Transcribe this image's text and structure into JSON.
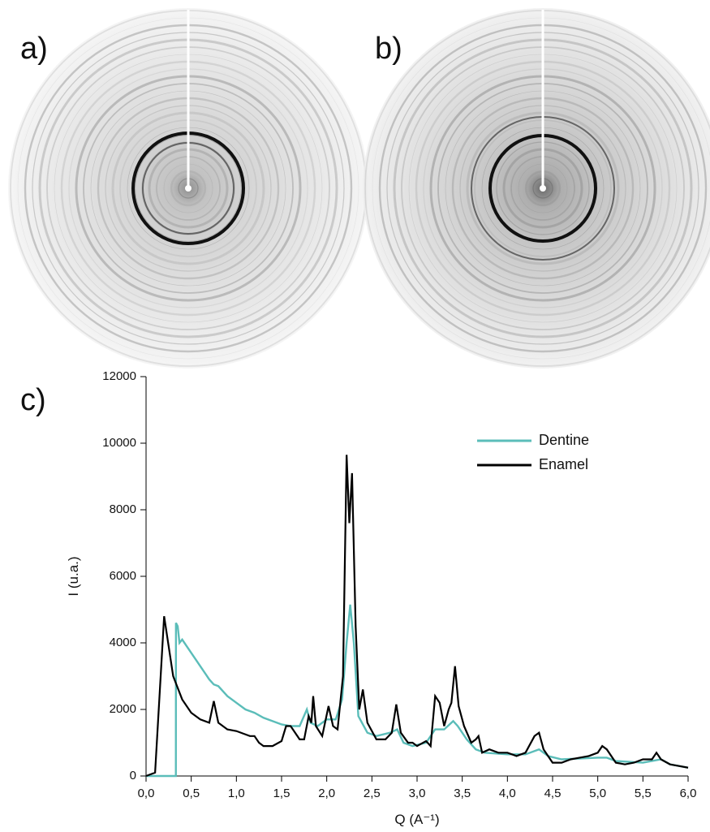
{
  "panels": {
    "a": "a)",
    "b": "b)",
    "c": "c)"
  },
  "chart_data": {
    "type": "line",
    "xlabel": "Q (A⁻¹)",
    "ylabel": "I (u.a.)",
    "xlim": [
      0,
      6
    ],
    "ylim": [
      0,
      12000
    ],
    "xticks": [
      {
        "value": 0,
        "label": "0,0"
      },
      {
        "value": 0.5,
        "label": "0,5"
      },
      {
        "value": 1,
        "label": "1,0"
      },
      {
        "value": 1.5,
        "label": "1,5"
      },
      {
        "value": 2,
        "label": "2,0"
      },
      {
        "value": 2.5,
        "label": "2,5"
      },
      {
        "value": 3,
        "label": "3,0"
      },
      {
        "value": 3.5,
        "label": "3,5"
      },
      {
        "value": 4,
        "label": "4,0"
      },
      {
        "value": 4.5,
        "label": "4,5"
      },
      {
        "value": 5,
        "label": "5,0"
      },
      {
        "value": 5.5,
        "label": "5,5"
      },
      {
        "value": 6,
        "label": "6,0"
      }
    ],
    "yticks": [
      0,
      2000,
      4000,
      6000,
      8000,
      10000,
      12000
    ],
    "grid": false,
    "series": [
      {
        "name": "Dentine",
        "color": "#5bbdb9",
        "x": [
          0,
          0.33,
          0.331,
          0.35,
          0.37,
          0.4,
          0.5,
          0.6,
          0.7,
          0.75,
          0.8,
          0.9,
          1.0,
          1.1,
          1.2,
          1.3,
          1.4,
          1.5,
          1.6,
          1.7,
          1.78,
          1.82,
          1.9,
          2.0,
          2.1,
          2.17,
          2.22,
          2.26,
          2.3,
          2.35,
          2.45,
          2.55,
          2.7,
          2.78,
          2.85,
          2.95,
          3.1,
          3.2,
          3.3,
          3.4,
          3.45,
          3.55,
          3.65,
          3.75,
          4.0,
          4.2,
          4.35,
          4.45,
          4.6,
          5.0,
          5.1,
          5.2,
          5.5,
          5.7,
          5.8,
          6.0
        ],
        "values": [
          0,
          0,
          4600,
          4500,
          4000,
          4100,
          3700,
          3300,
          2900,
          2750,
          2700,
          2400,
          2200,
          2000,
          1900,
          1750,
          1650,
          1550,
          1500,
          1500,
          2000,
          1600,
          1500,
          1700,
          1700,
          2300,
          4000,
          5150,
          4000,
          1800,
          1300,
          1200,
          1300,
          1400,
          1000,
          900,
          1000,
          1400,
          1400,
          1650,
          1500,
          1100,
          800,
          700,
          650,
          650,
          800,
          600,
          500,
          550,
          550,
          450,
          400,
          500,
          350,
          250
        ]
      },
      {
        "name": "Enamel",
        "color": "#000000",
        "x": [
          0,
          0.1,
          0.2,
          0.3,
          0.4,
          0.5,
          0.6,
          0.7,
          0.75,
          0.8,
          0.9,
          1.0,
          1.1,
          1.15,
          1.2,
          1.25,
          1.3,
          1.4,
          1.5,
          1.55,
          1.6,
          1.7,
          1.75,
          1.8,
          1.83,
          1.85,
          1.88,
          1.95,
          2.02,
          2.07,
          2.12,
          2.18,
          2.22,
          2.25,
          2.28,
          2.32,
          2.36,
          2.4,
          2.45,
          2.55,
          2.65,
          2.72,
          2.77,
          2.82,
          2.9,
          2.95,
          3.0,
          3.1,
          3.15,
          3.2,
          3.25,
          3.3,
          3.35,
          3.38,
          3.42,
          3.46,
          3.52,
          3.6,
          3.65,
          3.68,
          3.72,
          3.8,
          3.9,
          4.0,
          4.1,
          4.2,
          4.3,
          4.35,
          4.4,
          4.5,
          4.6,
          4.7,
          4.8,
          4.9,
          5.0,
          5.05,
          5.1,
          5.2,
          5.3,
          5.4,
          5.5,
          5.6,
          5.65,
          5.7,
          5.8,
          5.9,
          6.0
        ],
        "values": [
          0,
          100,
          4800,
          3000,
          2300,
          1900,
          1700,
          1600,
          2250,
          1600,
          1400,
          1350,
          1250,
          1200,
          1200,
          1000,
          900,
          900,
          1050,
          1500,
          1500,
          1100,
          1100,
          1800,
          1600,
          2400,
          1500,
          1200,
          2100,
          1500,
          1400,
          3000,
          9650,
          7600,
          9100,
          4500,
          2000,
          2600,
          1600,
          1100,
          1100,
          1300,
          2150,
          1300,
          1000,
          1000,
          900,
          1050,
          900,
          2400,
          2200,
          1500,
          2000,
          2200,
          3300,
          2100,
          1500,
          1000,
          1100,
          1200,
          700,
          800,
          700,
          700,
          600,
          700,
          1200,
          1300,
          800,
          400,
          400,
          500,
          550,
          600,
          700,
          900,
          800,
          400,
          350,
          400,
          500,
          500,
          700,
          500,
          350,
          300,
          250
        ]
      }
    ]
  }
}
